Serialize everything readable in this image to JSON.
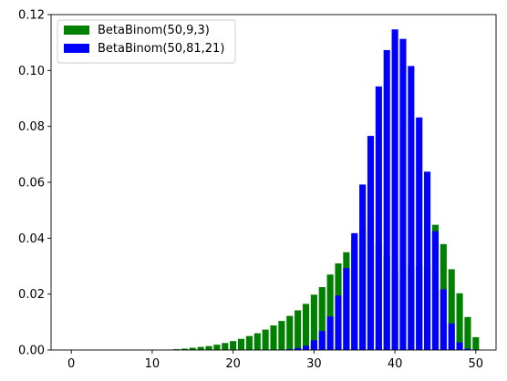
{
  "chart_data": {
    "type": "bar",
    "title": "",
    "xlabel": "",
    "ylabel": "",
    "xlim": [
      -2.5,
      52.5
    ],
    "ylim": [
      0,
      0.12
    ],
    "xticks": [
      0,
      10,
      20,
      30,
      40,
      50
    ],
    "yticks": [
      0.0,
      0.02,
      0.04,
      0.06,
      0.08,
      0.1,
      0.12
    ],
    "xtick_labels": [
      "0",
      "10",
      "20",
      "30",
      "40",
      "50"
    ],
    "ytick_labels": [
      "0.00",
      "0.02",
      "0.04",
      "0.06",
      "0.08",
      "0.10",
      "0.12"
    ],
    "grid": false,
    "legend_position": "upper-left",
    "x": [
      0,
      1,
      2,
      3,
      4,
      5,
      6,
      7,
      8,
      9,
      10,
      11,
      12,
      13,
      14,
      15,
      16,
      17,
      18,
      19,
      20,
      21,
      22,
      23,
      24,
      25,
      26,
      27,
      28,
      29,
      30,
      31,
      32,
      33,
      34,
      35,
      36,
      37,
      38,
      39,
      40,
      41,
      42,
      43,
      44,
      45,
      46,
      47,
      48,
      49,
      50
    ],
    "series": [
      {
        "name": "BetaBinom(50,9,3)",
        "color": "#008000",
        "values": [
          0,
          0,
          0,
          0,
          0,
          0,
          0,
          0,
          0,
          0,
          0,
          0,
          0.0001,
          0.0003,
          0.0005,
          0.0008,
          0.0011,
          0.0014,
          0.0019,
          0.0025,
          0.0032,
          0.004,
          0.005,
          0.006,
          0.0073,
          0.0088,
          0.0104,
          0.0122,
          0.0142,
          0.0165,
          0.0198,
          0.0225,
          0.027,
          0.031,
          0.035,
          0.039,
          0.0434,
          0.047,
          0.038,
          0.034,
          0.028,
          0.025,
          0.03,
          0.03,
          0.03,
          0.0448,
          0.0379,
          0.0289,
          0.0203,
          0.0118,
          0.0046
        ]
      },
      {
        "name": "BetaBinom(50,81,21)",
        "color": "#0000ff",
        "values": [
          0,
          0,
          0,
          0,
          0,
          0,
          0,
          0,
          0,
          0,
          0,
          0,
          0,
          0,
          0,
          0,
          0,
          0,
          0,
          0,
          0,
          0,
          0,
          0,
          0,
          0,
          0.0001,
          0.0003,
          0.0007,
          0.0015,
          0.0035,
          0.0068,
          0.012,
          0.0195,
          0.0293,
          0.0418,
          0.0592,
          0.0766,
          0.0943,
          0.1073,
          0.1147,
          0.1113,
          0.1016,
          0.0832,
          0.0638,
          0.0425,
          0.0217,
          0.0095,
          0.0027,
          0.0005,
          0
        ]
      }
    ]
  }
}
